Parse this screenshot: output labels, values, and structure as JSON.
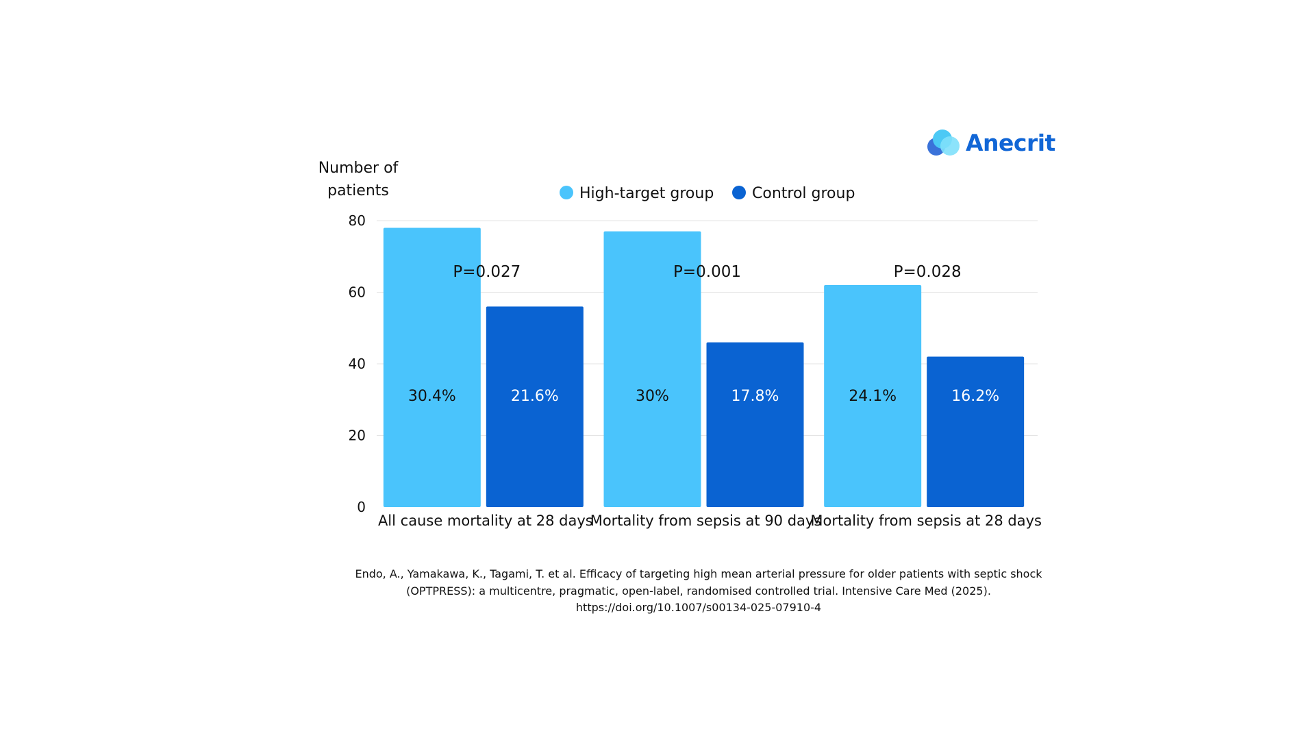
{
  "brand": {
    "name": "Anecrit",
    "colors": {
      "text": "#1166d6",
      "light": "#4cc9f5",
      "dark": "#3a72d9"
    }
  },
  "chart_data": {
    "type": "bar",
    "ylabel_lines": [
      "Number of",
      "patients"
    ],
    "ylim": [
      0,
      80
    ],
    "yticks": [
      0,
      20,
      40,
      60,
      80
    ],
    "grid": true,
    "legend_position": "top-center",
    "categories": [
      "All cause mortality at 28 days",
      "Mortality from sepsis at 90 days",
      "Mortality from sepsis at 28 days"
    ],
    "series": [
      {
        "name": "High-target group",
        "color": "#4ac4fc",
        "values": [
          78,
          77,
          62
        ],
        "labels": [
          "30.4%",
          "30%",
          "24.1%"
        ],
        "label_color": "#111111"
      },
      {
        "name": "Control group",
        "color": "#0a63d2",
        "values": [
          56,
          46,
          42
        ],
        "labels": [
          "21.6%",
          "17.8%",
          "16.2%"
        ],
        "label_color": "#ffffff"
      }
    ],
    "annotations": [
      "P=0.027",
      "P=0.001",
      "P=0.028"
    ]
  },
  "citation": {
    "lines": [
      "Endo, A., Yamakawa, K., Tagami, T. et al. Efficacy of targeting high mean arterial pressure for older patients with septic shock",
      "(OPTPRESS): a multicentre, pragmatic, open-label, randomised controlled trial. Intensive Care Med (2025).",
      "https://doi.org/10.1007/s00134-025-07910-4"
    ]
  }
}
